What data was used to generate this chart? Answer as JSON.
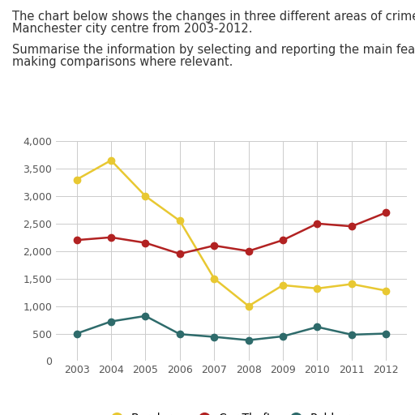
{
  "title_line1": "The chart below shows the changes in three different areas of crime in",
  "title_line2": "Manchester city centre from 2003-2012.",
  "subtitle_line1": "Summarise the information by selecting and reporting the main features and",
  "subtitle_line2": "making comparisons where relevant.",
  "years": [
    2003,
    2004,
    2005,
    2006,
    2007,
    2008,
    2009,
    2010,
    2011,
    2012
  ],
  "burglary": [
    3300,
    3650,
    3000,
    2550,
    1500,
    1000,
    1380,
    1320,
    1400,
    1280
  ],
  "car_theft": [
    2200,
    2250,
    2150,
    1950,
    2100,
    2000,
    2200,
    2500,
    2450,
    2700
  ],
  "robbery": [
    500,
    720,
    820,
    490,
    440,
    380,
    450,
    620,
    480,
    500
  ],
  "burglary_color": "#E8C832",
  "car_theft_color": "#B22222",
  "robbery_color": "#2E6B6B",
  "ylim": [
    0,
    4000
  ],
  "yticks": [
    0,
    500,
    1000,
    1500,
    2000,
    2500,
    3000,
    3500,
    4000
  ],
  "ytick_labels": [
    "0",
    "500",
    "1,000",
    "1,500",
    "2,000",
    "2,500",
    "3,000",
    "3,500",
    "4,000"
  ],
  "bg_color": "#FFFFFF",
  "grid_color": "#CCCCCC",
  "marker_size": 6,
  "linewidth": 1.8,
  "text_fontsize": 10.5,
  "axis_fontsize": 9,
  "legend_fontsize": 10
}
